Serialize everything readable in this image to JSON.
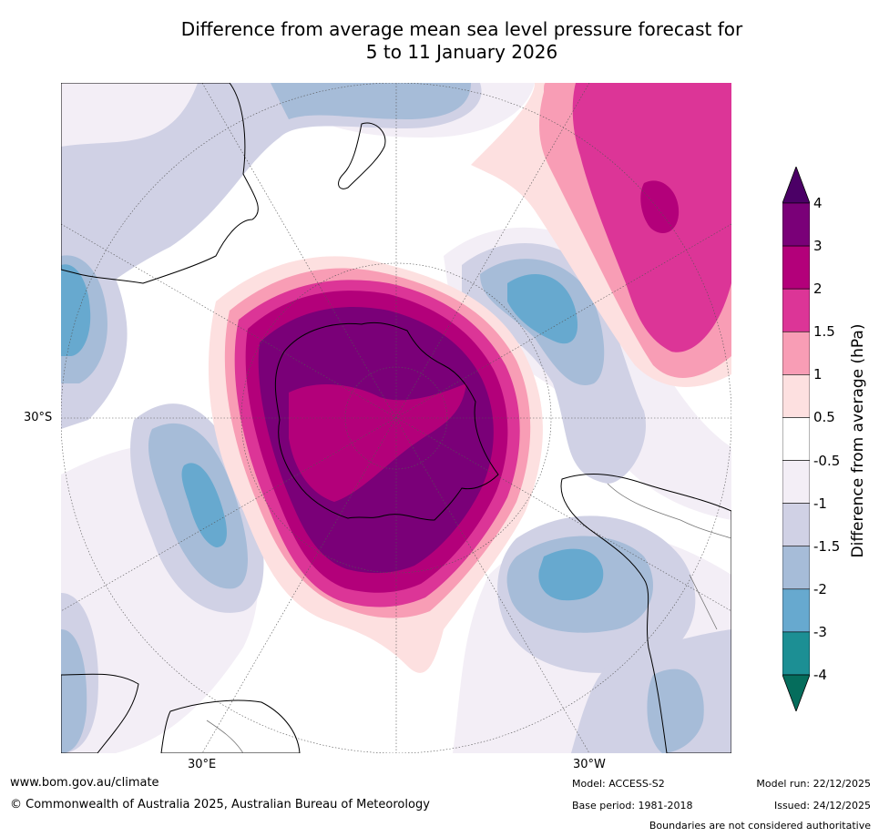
{
  "title": {
    "line1": "Difference from average mean sea level pressure forecast for",
    "line2": "5 to 11 January 2026"
  },
  "map": {
    "latitude_label": "30°S",
    "longitude_labels": [
      "30°E",
      "30°W"
    ],
    "projection": "south-polar-stereographic",
    "features": [
      "antarctica",
      "australia",
      "new-zealand",
      "south-america",
      "africa",
      "graticule"
    ]
  },
  "colorbar": {
    "title": "Difference from average (hPa)",
    "ticks": [
      "4",
      "3",
      "2",
      "1.5",
      "1",
      "0.5",
      "-0.5",
      "-1",
      "-1.5",
      "-2",
      "-3",
      "-4"
    ],
    "colors": [
      "#4b0066",
      "#7a0078",
      "#b3007a",
      "#dc3597",
      "#f89db5",
      "#fde0e0",
      "#ffffff",
      "#f3eef6",
      "#d0d1e5",
      "#a6bcd8",
      "#67a9cf",
      "#1c8f94",
      "#056d5c"
    ]
  },
  "footer": {
    "website": "www.bom.gov.au/climate",
    "copyright": "© Commonwealth of Australia 2025, Australian Bureau of Meteorology",
    "model": "Model: ACCESS-S2",
    "base_period": "Base period: 1981-2018",
    "model_run": "Model run: 22/12/2025",
    "issued": "Issued: 24/12/2025",
    "boundaries": "Boundaries are not considered authoritative"
  }
}
